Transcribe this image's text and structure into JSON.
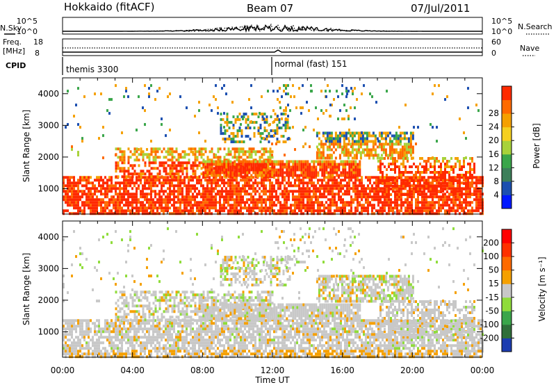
{
  "header": {
    "station": "Hokkaido (fitACF)",
    "beam": "Beam 07",
    "date": "07/Jul/2011"
  },
  "summary": {
    "left_top_label": "N.Sky",
    "left_top_ticks": [
      "10^5",
      "10^0"
    ],
    "right_top_label": "N.Search",
    "right_top_ticks": [
      "10^5",
      "10^0"
    ],
    "left_mid_label_1": "Freq.",
    "left_mid_label_2": "[MHz]",
    "left_mid_ticks": [
      "18",
      "8"
    ],
    "right_mid_label": "Nave",
    "right_mid_ticks": [
      "60",
      "0"
    ],
    "cpid_label": "CPID",
    "cpid_segments": [
      "themis 3300",
      "normal (fast) 151"
    ]
  },
  "chart_data": [
    {
      "type": "heatmap",
      "ylabel": "Slant Range [km]",
      "xlabel": "Time UT",
      "x_ticks": [
        "00:00",
        "04:00",
        "08:00",
        "12:00",
        "16:00",
        "20:00",
        "00:00"
      ],
      "y_ticks": [
        1000,
        2000,
        3000,
        4000
      ],
      "ylim": [
        200,
        4500
      ],
      "xlim_hours": [
        0,
        24
      ],
      "colorbar_label": "Power [dB]",
      "colorbar_ticks": [
        4,
        8,
        12,
        16,
        20,
        24,
        28
      ],
      "colorbar_colors": [
        "#0018ff",
        "#1c4fb0",
        "#3c7f5a",
        "#3aa64a",
        "#a8d23a",
        "#f5d020",
        "#f5a000",
        "#ff6a00",
        "#ff2a00"
      ]
    },
    {
      "type": "heatmap",
      "ylabel": "Slant Range [km]",
      "xlabel": "Time UT",
      "x_ticks": [
        "00:00",
        "04:00",
        "08:00",
        "12:00",
        "16:00",
        "20:00",
        "00:00"
      ],
      "y_ticks": [
        1000,
        2000,
        3000,
        4000
      ],
      "ylim": [
        200,
        4500
      ],
      "xlim_hours": [
        0,
        24
      ],
      "colorbar_label": "Velocity [m s⁻¹]",
      "colorbar_ticks": [
        200,
        100,
        50,
        15,
        -15,
        -50,
        -100,
        -200
      ],
      "colorbar_colors": [
        "#1c3cb0",
        "#2f6f3a",
        "#3aa64a",
        "#8fdc3a",
        "#c8c8c8",
        "#f5a000",
        "#ff6a00",
        "#ff3000",
        "#ff0000"
      ]
    }
  ],
  "axis": {
    "xlabel": "Time UT"
  }
}
